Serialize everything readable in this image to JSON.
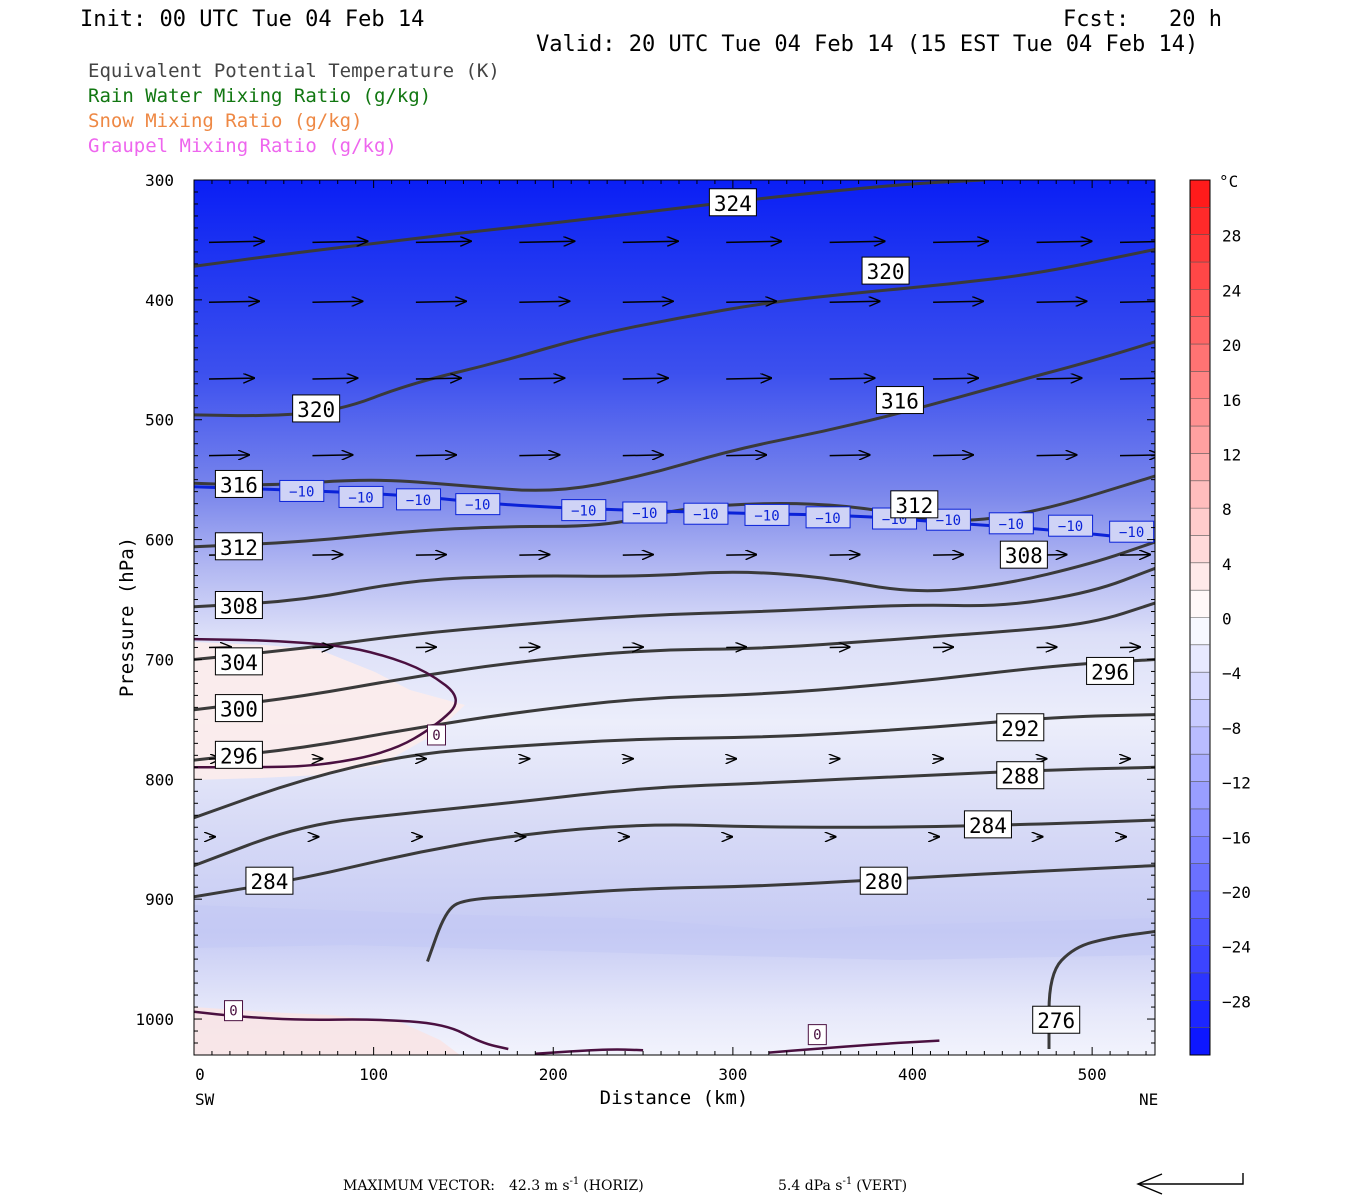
{
  "header": {
    "init": "Init: 00 UTC Tue 04 Feb 14",
    "fcst": "Fcst:   20 h",
    "valid": "Valid: 20 UTC Tue 04 Feb 14 (15 EST Tue 04 Feb 14)"
  },
  "legend": [
    {
      "label": "Equivalent Potential Temperature (K)",
      "color": "#444444"
    },
    {
      "label": "Rain Water Mixing Ratio (g/kg)",
      "color": "#117711"
    },
    {
      "label": "Snow Mixing Ratio (g/kg)",
      "color": "#ee8844"
    },
    {
      "label": "Graupel Mixing Ratio (g/kg)",
      "color": "#ee66ee"
    }
  ],
  "footer": {
    "max_vector_label": "MAXIMUM VECTOR:",
    "horiz_value": "42.3 m s",
    "horiz_exp": "-1",
    "horiz_unit": "(HORIZ)",
    "vert_value": "5.4 dPa s",
    "vert_exp": "-1",
    "vert_unit": "(VERT)"
  },
  "chart_data": {
    "type": "heatmap",
    "title": "",
    "xlabel": "Distance (km)",
    "ylabel": "Pressure (hPa)",
    "xlim": [
      0,
      535
    ],
    "ylim": [
      1030,
      300
    ],
    "y_scale": "linear",
    "x_ticks": [
      "0",
      "100",
      "200",
      "300",
      "400",
      "500"
    ],
    "x_tick_values": [
      0,
      100,
      200,
      300,
      400,
      500
    ],
    "x_end_labels": {
      "left": "SW",
      "right": "NE"
    },
    "y_ticks": [
      "300",
      "400",
      "500",
      "600",
      "700",
      "800",
      "900",
      "1000"
    ],
    "y_tick_values": [
      300,
      400,
      500,
      600,
      700,
      800,
      900,
      1000
    ],
    "colorbar": {
      "unit": "°C",
      "ticks": [
        "28",
        "24",
        "20",
        "16",
        "12",
        "8",
        "4",
        "0",
        "−4",
        "−8",
        "−12",
        "−16",
        "−20",
        "−24",
        "−28"
      ],
      "tick_values": [
        28,
        24,
        20,
        16,
        12,
        8,
        4,
        0,
        -4,
        -8,
        -12,
        -16,
        -20,
        -24,
        -28
      ],
      "range": [
        -32,
        32
      ]
    },
    "theta_e_contours": [
      {
        "label": "324",
        "points": [
          [
            0,
            372
          ],
          [
            50,
            362
          ],
          [
            100,
            353
          ],
          [
            150,
            344
          ],
          [
            200,
            336
          ],
          [
            250,
            327
          ],
          [
            300,
            318
          ],
          [
            350,
            310
          ],
          [
            400,
            303
          ],
          [
            440,
            300
          ]
        ],
        "label_at": [
          300,
          319
        ]
      },
      {
        "label": "320",
        "points": [
          [
            0,
            496
          ],
          [
            40,
            497
          ],
          [
            80,
            493
          ],
          [
            120,
            470
          ],
          [
            170,
            452
          ],
          [
            220,
            430
          ],
          [
            270,
            415
          ],
          [
            320,
            402
          ],
          [
            370,
            394
          ],
          [
            420,
            387
          ],
          [
            470,
            378
          ],
          [
            535,
            358
          ]
        ],
        "label_at": [
          385,
          376
        ]
      },
      {
        "label": "320",
        "points": [],
        "label_at": [
          68,
          491
        ]
      },
      {
        "label": "316",
        "points": [
          [
            0,
            553
          ],
          [
            40,
            555
          ],
          [
            100,
            549
          ],
          [
            150,
            555
          ],
          [
            200,
            561
          ],
          [
            250,
            547
          ],
          [
            300,
            525
          ],
          [
            350,
            510
          ],
          [
            400,
            492
          ],
          [
            450,
            471
          ],
          [
            500,
            451
          ],
          [
            535,
            435
          ]
        ],
        "label_at": [
          393,
          484
        ]
      },
      {
        "label": "316",
        "points": [],
        "label_at": [
          25,
          554
        ]
      },
      {
        "label": "312",
        "points": [
          [
            0,
            606
          ],
          [
            60,
            602
          ],
          [
            120,
            593
          ],
          [
            170,
            589
          ],
          [
            230,
            589
          ],
          [
            270,
            574
          ],
          [
            320,
            569
          ],
          [
            370,
            572
          ],
          [
            420,
            587
          ],
          [
            470,
            577
          ],
          [
            535,
            547
          ]
        ],
        "label_at": [
          401,
          571
        ]
      },
      {
        "label": "312",
        "points": [],
        "label_at": [
          25,
          606
        ]
      },
      {
        "label": "308",
        "points": [
          [
            0,
            656
          ],
          [
            60,
            651
          ],
          [
            120,
            634
          ],
          [
            180,
            630
          ],
          [
            250,
            631
          ],
          [
            300,
            626
          ],
          [
            350,
            631
          ],
          [
            400,
            645
          ],
          [
            450,
            638
          ],
          [
            500,
            620
          ],
          [
            535,
            602
          ]
        ],
        "label_at": [
          462,
          613
        ]
      },
      {
        "label": "308",
        "points": [],
        "label_at": [
          25,
          655
        ]
      },
      {
        "label": "304",
        "points": [
          [
            0,
            700
          ],
          [
            60,
            691
          ],
          [
            120,
            679
          ],
          [
            180,
            671
          ],
          [
            250,
            663
          ],
          [
            320,
            660
          ],
          [
            400,
            654
          ],
          [
            450,
            656
          ],
          [
            500,
            644
          ],
          [
            535,
            624
          ]
        ],
        "label_at": [
          25,
          702
        ]
      },
      {
        "label": "300",
        "points": [
          [
            0,
            742
          ],
          [
            60,
            731
          ],
          [
            120,
            715
          ],
          [
            180,
            702
          ],
          [
            250,
            692
          ],
          [
            320,
            691
          ],
          [
            400,
            682
          ],
          [
            450,
            677
          ],
          [
            500,
            670
          ],
          [
            535,
            653
          ]
        ],
        "label_at": [
          25,
          741
        ]
      },
      {
        "label": "296",
        "points": [
          [
            0,
            784
          ],
          [
            60,
            774
          ],
          [
            120,
            758
          ],
          [
            180,
            744
          ],
          [
            250,
            732
          ],
          [
            320,
            729
          ],
          [
            400,
            719
          ],
          [
            480,
            705
          ],
          [
            535,
            700
          ]
        ],
        "label_at": [
          510,
          710
        ]
      },
      {
        "label": "296",
        "points": [],
        "label_at": [
          25,
          780
        ]
      },
      {
        "label": "292",
        "points": [
          [
            0,
            832
          ],
          [
            60,
            800
          ],
          [
            120,
            779
          ],
          [
            180,
            772
          ],
          [
            250,
            766
          ],
          [
            320,
            765
          ],
          [
            400,
            758
          ],
          [
            480,
            748
          ],
          [
            535,
            746
          ]
        ],
        "label_at": [
          460,
          757
        ]
      },
      {
        "label": "288",
        "points": [
          [
            0,
            872
          ],
          [
            60,
            838
          ],
          [
            120,
            828
          ],
          [
            180,
            819
          ],
          [
            250,
            807
          ],
          [
            320,
            803
          ],
          [
            400,
            797
          ],
          [
            480,
            792
          ],
          [
            535,
            790
          ]
        ],
        "label_at": [
          460,
          797
        ]
      },
      {
        "label": "284",
        "points": [
          [
            0,
            898
          ],
          [
            60,
            883
          ],
          [
            120,
            862
          ],
          [
            180,
            846
          ],
          [
            250,
            837
          ],
          [
            320,
            840
          ],
          [
            400,
            840
          ],
          [
            480,
            837
          ],
          [
            535,
            834
          ]
        ],
        "label_at": [
          442,
          838
        ]
      },
      {
        "label": "284",
        "points": [],
        "label_at": [
          42,
          885
        ]
      },
      {
        "label": "280",
        "points": [
          [
            130,
            952
          ],
          [
            140,
            910
          ],
          [
            150,
            900
          ],
          [
            190,
            897
          ],
          [
            250,
            891
          ],
          [
            320,
            889
          ],
          [
            400,
            882
          ],
          [
            480,
            876
          ],
          [
            535,
            872
          ]
        ],
        "label_at": [
          384,
          885
        ]
      },
      {
        "label": "276",
        "points": [
          [
            476,
            1025
          ],
          [
            476,
            962
          ],
          [
            490,
            940
          ],
          [
            510,
            932
          ],
          [
            535,
            927
          ]
        ],
        "label_at": [
          480,
          1001
        ]
      }
    ],
    "temperature_contours": [
      {
        "label": "0",
        "points": [
          [
            0,
            683
          ],
          [
            40,
            684
          ],
          [
            80,
            688
          ],
          [
            105,
            696
          ],
          [
            130,
            710
          ],
          [
            150,
            733
          ],
          [
            135,
            755
          ],
          [
            110,
            777
          ],
          [
            70,
            789
          ],
          [
            30,
            790
          ],
          [
            0,
            790
          ]
        ],
        "label_at": [
          135,
          763
        ]
      },
      {
        "label": "0",
        "points": [
          [
            0,
            994
          ],
          [
            25,
            998
          ],
          [
            60,
            1001
          ],
          [
            100,
            1000
          ],
          [
            140,
            1004
          ],
          [
            160,
            1020
          ],
          [
            175,
            1025
          ]
        ],
        "label_at": [
          22,
          993
        ]
      },
      {
        "label": "0",
        "points": [
          [
            320,
            1028
          ],
          [
            345,
            1025
          ],
          [
            380,
            1021
          ],
          [
            415,
            1018
          ]
        ],
        "label_at": [
          347,
          1013
        ]
      },
      {
        "label": "0",
        "points": [
          [
            190,
            1029
          ],
          [
            230,
            1025
          ],
          [
            250,
            1026
          ]
        ],
        "label_at": null
      }
    ],
    "minus10_contour": {
      "label": "−10",
      "points": [
        [
          0,
          556
        ],
        [
          60,
          559
        ],
        [
          120,
          563
        ],
        [
          170,
          571
        ],
        [
          230,
          575
        ],
        [
          300,
          578
        ],
        [
          370,
          580
        ],
        [
          420,
          586
        ],
        [
          480,
          592
        ],
        [
          535,
          601
        ]
      ],
      "label_positions": [
        [
          60,
          559
        ],
        [
          93,
          564
        ],
        [
          125,
          566
        ],
        [
          158,
          570
        ],
        [
          217,
          575
        ],
        [
          251,
          577
        ],
        [
          285,
          578
        ],
        [
          319,
          579
        ],
        [
          353,
          581
        ],
        [
          390,
          582
        ],
        [
          420,
          583
        ],
        [
          455,
          586
        ],
        [
          488,
          588
        ],
        [
          522,
          593
        ]
      ]
    },
    "wind_arrow_rows": [
      {
        "pressure": 352,
        "lengths": [
          55,
          55,
          55,
          55,
          55,
          55,
          55,
          55,
          55,
          55
        ]
      },
      {
        "pressure": 402,
        "lengths": [
          50,
          50,
          50,
          50,
          50,
          50,
          50,
          50,
          50,
          50
        ]
      },
      {
        "pressure": 466,
        "lengths": [
          45,
          45,
          45,
          45,
          45,
          45,
          45,
          45,
          45,
          45
        ]
      },
      {
        "pressure": 530,
        "lengths": [
          40,
          40,
          40,
          40,
          40,
          40,
          40,
          40,
          40,
          40
        ]
      },
      {
        "pressure": 613,
        "lengths": [
          30,
          30,
          30,
          30,
          30,
          30,
          30,
          30,
          30,
          30
        ]
      },
      {
        "pressure": 690,
        "lengths": [
          22,
          20,
          20,
          20,
          20,
          20,
          20,
          20,
          20,
          20
        ]
      },
      {
        "pressure": 783,
        "lengths": [
          12,
          10,
          10,
          10,
          10,
          10,
          10,
          10,
          10,
          10
        ]
      },
      {
        "pressure": 848,
        "lengths": [
          6,
          6,
          6,
          6,
          6,
          6,
          6,
          6,
          6,
          6
        ]
      }
    ],
    "max_vector_arrow": {
      "direction": "left"
    }
  }
}
